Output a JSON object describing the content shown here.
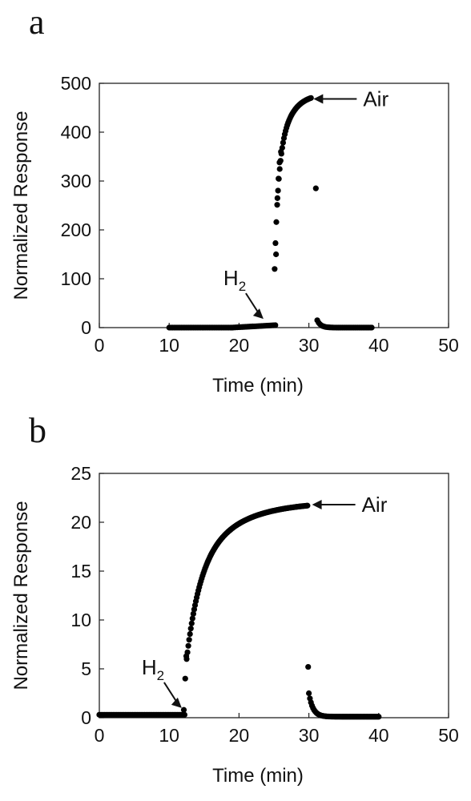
{
  "chart_data": [
    {
      "panel_label": "a",
      "type": "scatter",
      "xlabel": "Time (min)",
      "ylabel": "Normalized Response",
      "xlim": [
        0,
        50
      ],
      "ylim": [
        0,
        500
      ],
      "xticks": [
        "0",
        "10",
        "20",
        "30",
        "40",
        "50"
      ],
      "yticks": [
        "0",
        "100",
        "200",
        "300",
        "400",
        "500"
      ],
      "grid": false,
      "annotations": [
        {
          "text": "Air",
          "x": 30.2,
          "y": 468,
          "arrow": "left"
        },
        {
          "text": "H",
          "subscript": "2",
          "x": 23.5,
          "y": 8,
          "arrow": "down-right"
        }
      ],
      "series": [
        {
          "color": "#000000",
          "segments": [
            {
              "shape": "flat",
              "x_start": 10,
              "x_end": 19,
              "y_start": 0,
              "y_end": 0,
              "step": 0.25
            },
            {
              "shape": "flat",
              "x_start": 19,
              "x_end": 25.2,
              "y_start": 0,
              "y_end": 5,
              "step": 0.25
            },
            {
              "shape": "rise",
              "x_start": 25.1,
              "x_end": 30.3,
              "y_start": 120,
              "y_end": 470,
              "tau": 0.8,
              "step": 0.12
            },
            {
              "shape": "decay",
              "x_start": 31.2,
              "x_end": 39,
              "y_start": 15,
              "y_end": 0,
              "tau": 0.5,
              "step": 0.2
            }
          ],
          "points": [
            [
              25.3,
              150
            ],
            [
              25.5,
              265
            ],
            [
              25.65,
              305
            ],
            [
              25.8,
              338
            ],
            [
              26.0,
              360
            ],
            [
              31.0,
              285
            ]
          ]
        }
      ]
    },
    {
      "panel_label": "b",
      "type": "scatter",
      "xlabel": "Time (min)",
      "ylabel": "Normalized Response",
      "xlim": [
        0,
        50
      ],
      "ylim": [
        0,
        25
      ],
      "xticks": [
        "0",
        "10",
        "20",
        "30",
        "40",
        "50"
      ],
      "yticks": [
        "0",
        "5",
        "10",
        "15",
        "20",
        "25"
      ],
      "grid": false,
      "annotations": [
        {
          "text": "Air",
          "x": 30.0,
          "y": 21.8,
          "arrow": "left"
        },
        {
          "text": "H",
          "subscript": "2",
          "x": 11.8,
          "y": 0.5,
          "arrow": "down-right"
        }
      ],
      "series": [
        {
          "color": "#000000",
          "segments": [
            {
              "shape": "flat",
              "x_start": 0,
              "x_end": 12.2,
              "y_start": 0.3,
              "y_end": 0.3,
              "step": 0.25
            },
            {
              "shape": "rise",
              "x_start": 12.5,
              "x_end": 29.8,
              "y_start": 6,
              "y_end": 21.7,
              "tau": 0.9,
              "step": 0.12
            },
            {
              "shape": "decay",
              "x_start": 30.0,
              "x_end": 40,
              "y_start": 2.5,
              "y_end": 0.1,
              "tau": 0.6,
              "step": 0.15
            }
          ],
          "points": [
            [
              12.1,
              0.8
            ],
            [
              12.3,
              4.0
            ],
            [
              12.45,
              6.3
            ],
            [
              29.9,
              5.2
            ]
          ]
        }
      ]
    }
  ]
}
